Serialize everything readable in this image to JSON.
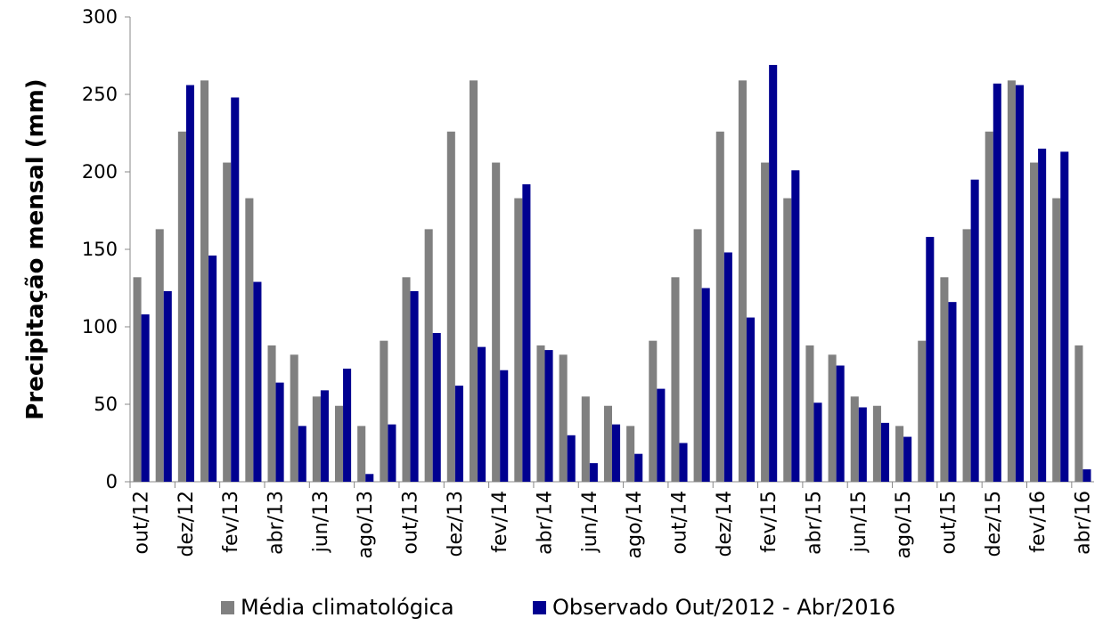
{
  "chart_data": {
    "type": "bar",
    "y_label": "Precipitação mensal (mm)",
    "categories": [
      "out/12",
      null,
      "dez/12",
      null,
      "fev/13",
      null,
      "abr/13",
      null,
      "jun/13",
      null,
      "ago/13",
      null,
      "out/13",
      null,
      "dez/13",
      null,
      "fev/14",
      null,
      "abr/14",
      null,
      "jun/14",
      null,
      "ago/14",
      null,
      "out/14",
      null,
      "dez/14",
      null,
      "fev/15",
      null,
      "abr/15",
      null,
      "jun/15",
      null,
      "ago/15",
      null,
      "out/15",
      null,
      "dez/15",
      null,
      "fev/16",
      null,
      "abr/16"
    ],
    "series": [
      {
        "name": "Média climatológica",
        "color": "#808080",
        "values": [
          132,
          163,
          226,
          259,
          206,
          183,
          88,
          82,
          55,
          49,
          36,
          91,
          132,
          163,
          226,
          259,
          206,
          183,
          88,
          82,
          55,
          49,
          36,
          91,
          132,
          163,
          226,
          259,
          206,
          183,
          88,
          82,
          55,
          49,
          36,
          91,
          132,
          163,
          226,
          259,
          206,
          183,
          88
        ]
      },
      {
        "name": "Observado Out/2012 - Abr/2016",
        "color": "#000090",
        "values": [
          108,
          123,
          256,
          146,
          248,
          129,
          64,
          36,
          59,
          73,
          5,
          37,
          123,
          96,
          62,
          87,
          72,
          192,
          85,
          30,
          12,
          37,
          18,
          60,
          25,
          125,
          148,
          106,
          269,
          201,
          51,
          75,
          48,
          38,
          29,
          158,
          116,
          195,
          257,
          256,
          215,
          213,
          8
        ]
      }
    ],
    "ylim": [
      0,
      300
    ],
    "yticks": [
      0,
      50,
      100,
      150,
      200,
      250,
      300
    ],
    "legend": "bottom"
  }
}
